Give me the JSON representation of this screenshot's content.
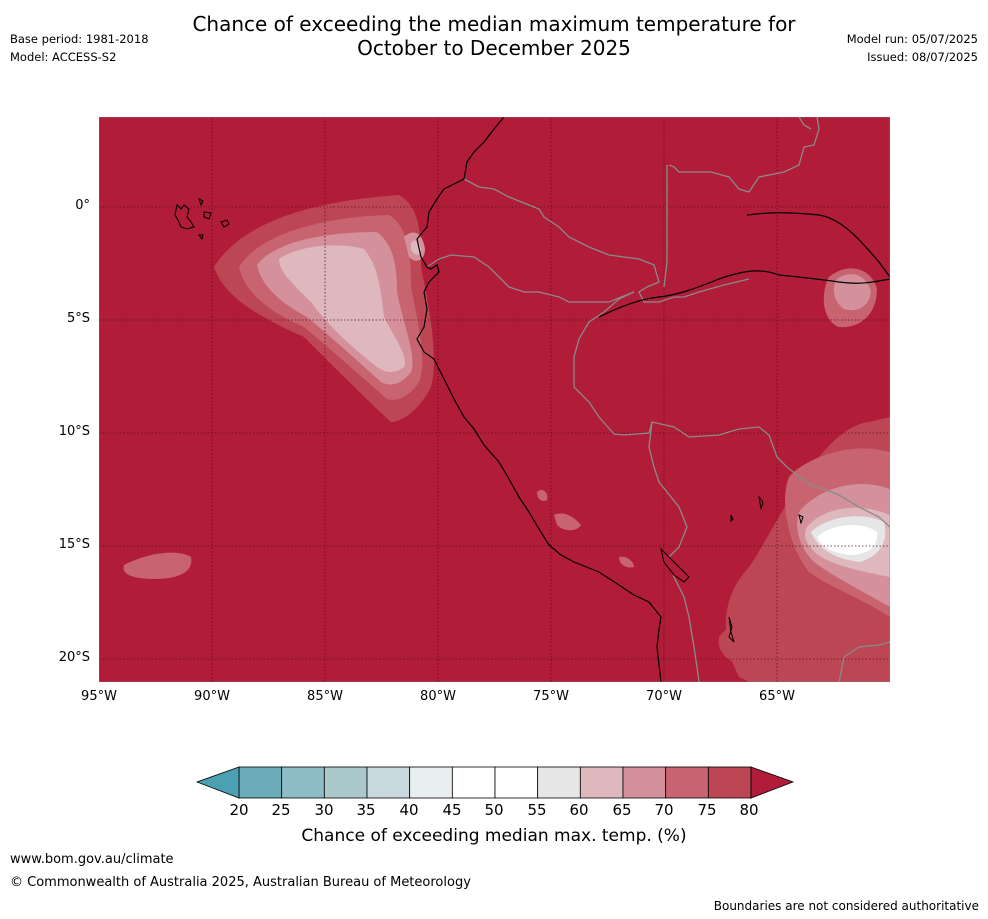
{
  "title": {
    "line1": "Chance of exceeding the median maximum temperature for",
    "line2": "October to December 2025"
  },
  "meta_left": {
    "base_period": "Base period: 1981-2018",
    "model": "Model: ACCESS-S2"
  },
  "meta_right": {
    "model_run": "Model run: 05/07/2025",
    "issued": "Issued: 08/07/2025"
  },
  "map": {
    "lat_labels": [
      "0°",
      "5°S",
      "10°S",
      "15°S",
      "20°S"
    ],
    "lon_labels": [
      "95°W",
      "90°W",
      "85°W",
      "80°W",
      "75°W",
      "70°W",
      "65°W"
    ],
    "background_color": "#b11c38"
  },
  "colorbar": {
    "ticks": [
      "20",
      "25",
      "30",
      "35",
      "40",
      "45",
      "50",
      "55",
      "60",
      "65",
      "70",
      "75",
      "80"
    ],
    "colors": [
      "#6aacb9",
      "#8cbcc6",
      "#abc8cd",
      "#c8d8dc",
      "#e9eff1",
      "#ffffff",
      "#ffffff",
      "#e7e6e6",
      "#dfb8bd",
      "#d4919b",
      "#c7646f",
      "#bd4654"
    ],
    "under_color": "#4ba1b1",
    "over_color": "#b11c38",
    "label": "Chance of exceeding median max. temp. (%)"
  },
  "footer": {
    "url": "www.bom.gov.au/climate",
    "copyright": "© Commonwealth of Australia 2025, Australian Bureau of Meteorology",
    "disclaimer": "Boundaries are not considered authoritative"
  }
}
